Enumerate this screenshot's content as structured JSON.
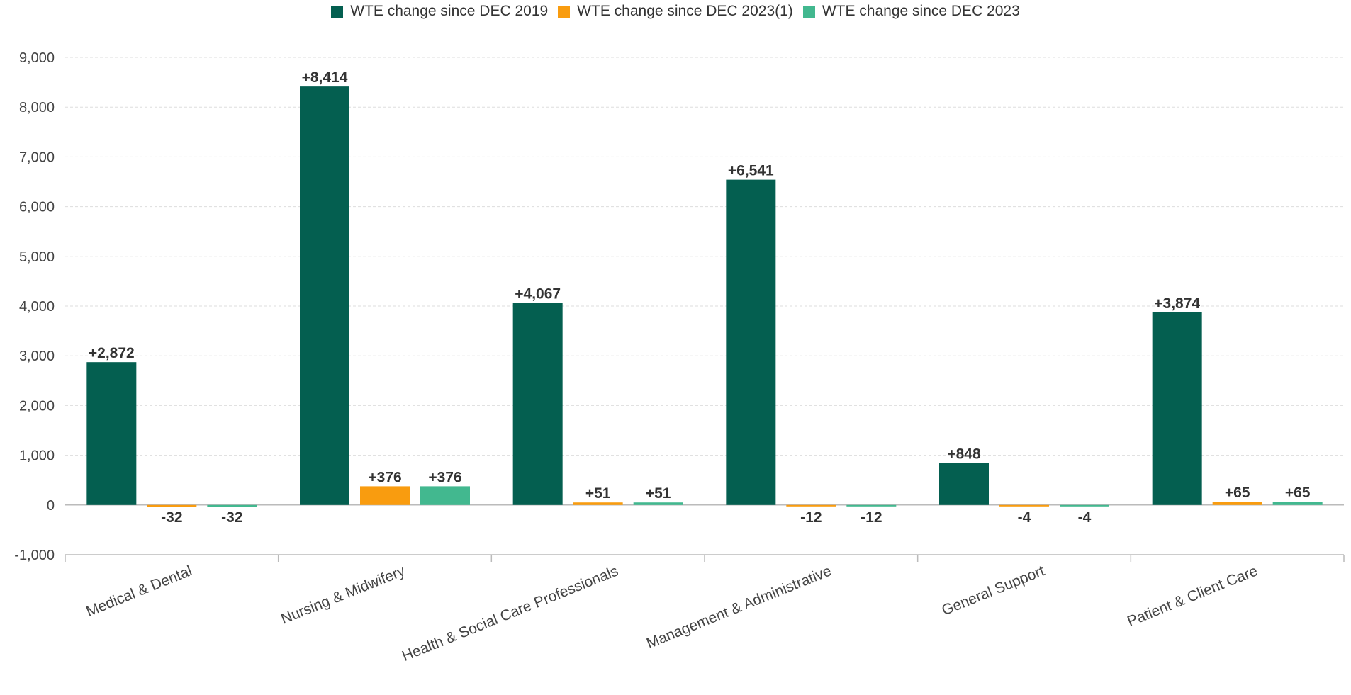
{
  "chart_data": {
    "type": "bar",
    "title": "",
    "xlabel": "",
    "ylabel": "",
    "categories": [
      "Medical & Dental",
      "Nursing & Midwifery",
      "Health & Social Care Professionals",
      "Management & Administrative",
      "General Support",
      "Patient & Client Care"
    ],
    "series": [
      {
        "name": "WTE change since DEC 2019",
        "color": "#045f50",
        "values": [
          2872,
          8414,
          4067,
          6541,
          848,
          3874
        ],
        "labels": [
          "+2,872",
          "+8,414",
          "+4,067",
          "+6,541",
          "+848",
          "+3,874"
        ]
      },
      {
        "name": "WTE change since DEC 2023(1)",
        "color": "#f99c0f",
        "values": [
          -32,
          376,
          51,
          -12,
          -4,
          65
        ],
        "labels": [
          "-32",
          "+376",
          "+51",
          "-12",
          "-4",
          "+65"
        ]
      },
      {
        "name": "WTE change since DEC 2023",
        "color": "#42b88f",
        "values": [
          -32,
          376,
          51,
          -12,
          -4,
          65
        ],
        "labels": [
          "-32",
          "+376",
          "+51",
          "-12",
          "-4",
          "+65"
        ]
      }
    ],
    "ylim": [
      -1000,
      9000
    ],
    "yticks": [
      -1000,
      0,
      1000,
      2000,
      3000,
      4000,
      5000,
      6000,
      7000,
      8000,
      9000
    ],
    "ytick_labels": [
      "-1,000",
      "0",
      "1,000",
      "2,000",
      "3,000",
      "4,000",
      "5,000",
      "6,000",
      "7,000",
      "8,000",
      "9,000"
    ],
    "grid": true,
    "legend_position": "top-center"
  }
}
